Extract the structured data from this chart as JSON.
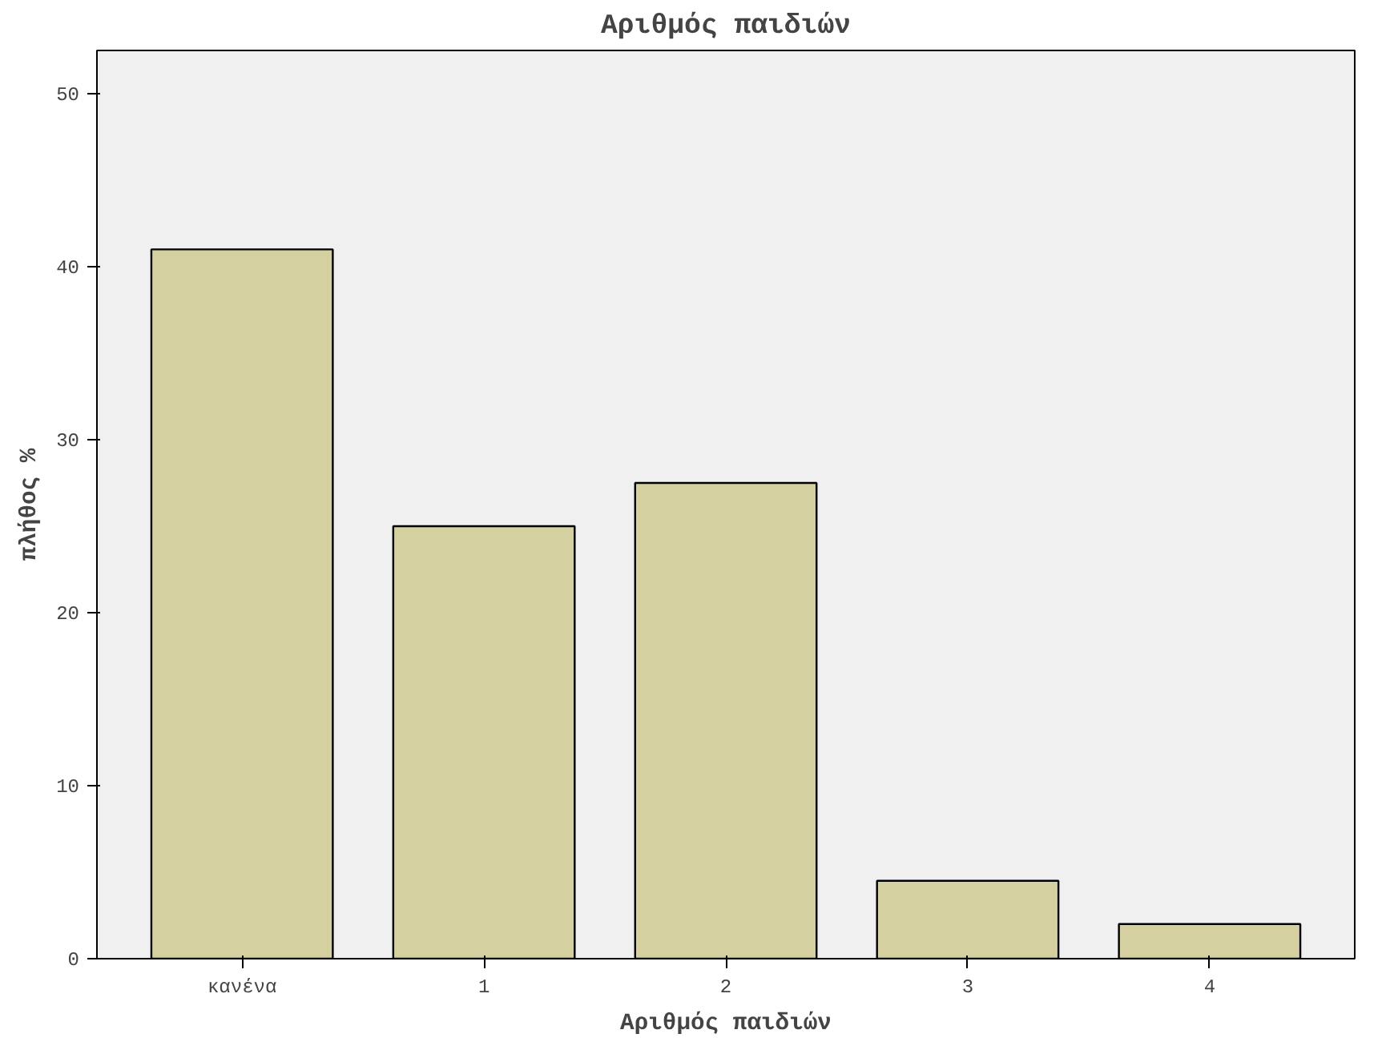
{
  "chart_data": {
    "type": "bar",
    "title": "Αριθμός παιδιών",
    "xlabel": "Αριθμός παιδιών",
    "ylabel": "πλήθος %",
    "categories": [
      "κανένα",
      "1",
      "2",
      "3",
      "4"
    ],
    "values": [
      41,
      25,
      27.5,
      4.5,
      2
    ],
    "color": "#d5d0a0",
    "ylim": [
      0,
      52.5
    ],
    "yticks": [
      0,
      10,
      20,
      30,
      40,
      50
    ],
    "grid": false
  }
}
